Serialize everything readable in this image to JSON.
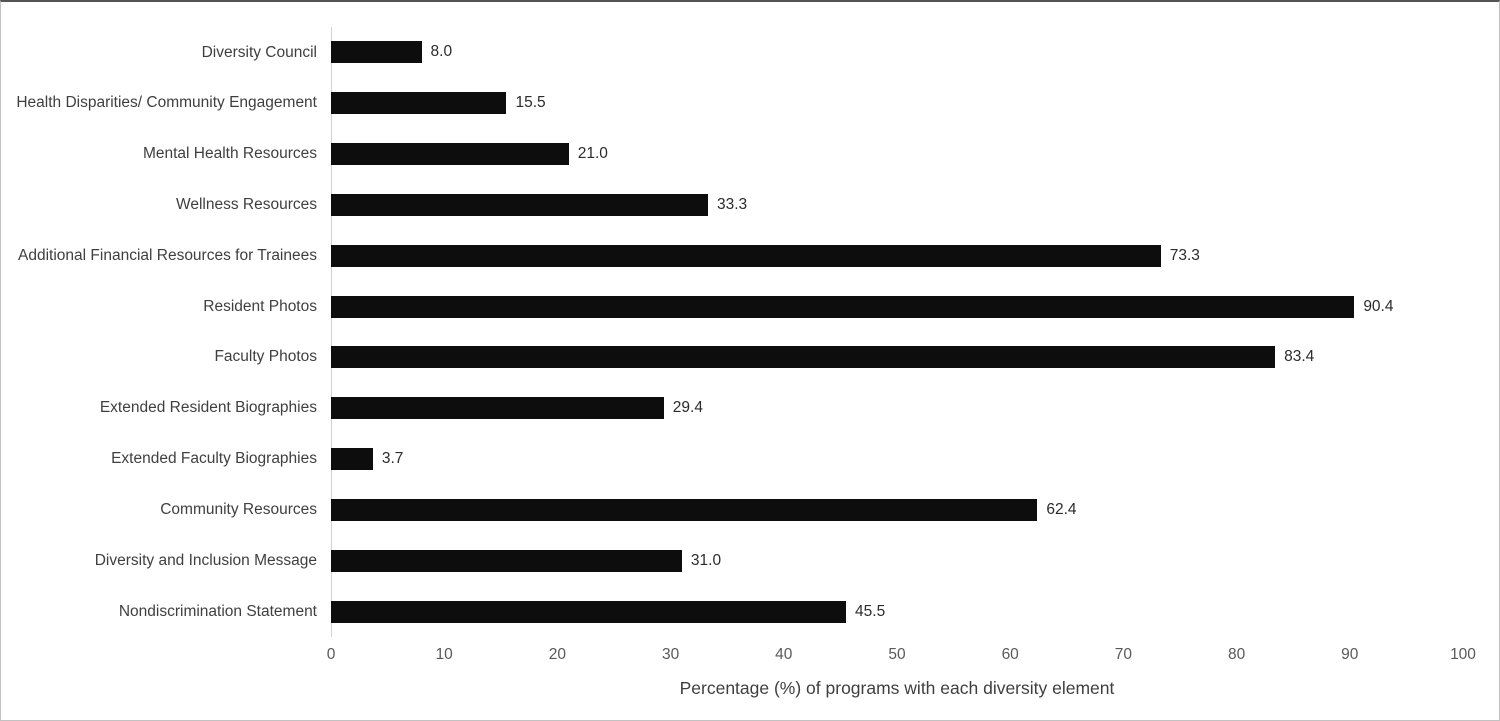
{
  "chart_data": {
    "type": "bar",
    "orientation": "horizontal",
    "title": "",
    "xlabel": "Percentage (%) of programs with each diversity element",
    "ylabel": "",
    "xlim": [
      0,
      100
    ],
    "x_ticks": [
      0,
      10,
      20,
      30,
      40,
      50,
      60,
      70,
      80,
      90,
      100
    ],
    "grid": "off",
    "legend": "none",
    "categories": [
      "Diversity Council",
      "Health Disparities/ Community Engagement",
      "Mental Health Resources",
      "Wellness Resources",
      "Additional Financial Resources for Trainees",
      "Resident Photos",
      "Faculty Photos",
      "Extended Resident Biographies",
      "Extended Faculty Biographies",
      "Community Resources",
      "Diversity and Inclusion Message",
      "Nondiscrimination Statement"
    ],
    "values": [
      8.0,
      15.5,
      21.0,
      33.3,
      73.3,
      90.4,
      83.4,
      29.4,
      3.7,
      62.4,
      31.0,
      45.5
    ],
    "value_labels": [
      "8.0",
      "15.5",
      "21.0",
      "33.3",
      "73.3",
      "90.4",
      "83.4",
      "29.4",
      "3.7",
      "62.4",
      "31.0",
      "45.5"
    ],
    "colors": {
      "bar": "#0d0d0d",
      "category_label": "#3f3f3f",
      "value_label": "#2b2b2b",
      "tick_label": "#595959",
      "axis_line": "#d2d2d2",
      "background": "#ffffff"
    }
  }
}
